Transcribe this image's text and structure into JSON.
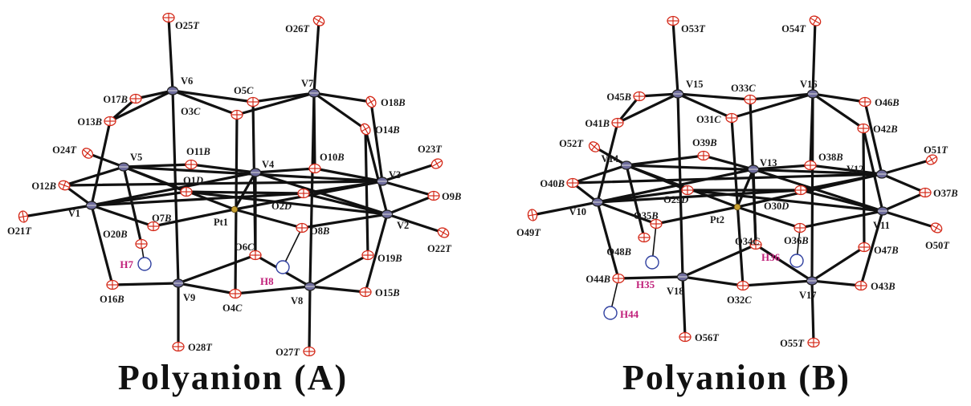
{
  "colors": {
    "oxygen": "#d42a1a",
    "vanadium": "#6e6c9c",
    "platinum": "#c8a030",
    "hydrogen": "#3040a0",
    "h_label": "#c0207a",
    "bond": "#111111"
  },
  "panels": [
    {
      "id": "A",
      "caption": "Polyanion (A)",
      "vanadium": [
        {
          "label": "V1",
          "nx": 0.0,
          "ny": 0.0
        },
        {
          "label": "V2",
          "nx": 0.0,
          "ny": 0.0
        },
        {
          "label": "V3",
          "nx": 0.0,
          "ny": 0.0
        },
        {
          "label": "V4",
          "nx": 0.0,
          "ny": 0.0
        },
        {
          "label": "V5",
          "nx": 0.0,
          "ny": 0.0
        },
        {
          "label": "V6",
          "nx": 0.0,
          "ny": 0.0
        },
        {
          "label": "V7",
          "nx": 0.0,
          "ny": 0.0
        },
        {
          "label": "V8",
          "nx": 0.0,
          "ny": 0.0
        },
        {
          "label": "V9",
          "nx": 0.0,
          "ny": 0.0
        }
      ],
      "platinum": "Pt1",
      "oxygen": [
        "O1D",
        "O2D",
        "O3C",
        "O4C",
        "O5C",
        "O6C",
        "O7B",
        "O8B",
        "O9B",
        "O10B",
        "O11B",
        "O12B",
        "O13B",
        "O14B",
        "O15B",
        "O16B",
        "O17B",
        "O18B",
        "O19B",
        "O20B",
        "O21T",
        "O22T",
        "O23T",
        "O24T",
        "O25T",
        "O26T",
        "O27T",
        "O28T"
      ],
      "hydrogen": [
        "H7",
        "H8"
      ]
    },
    {
      "id": "B",
      "caption": "Polyanion (B)",
      "vanadium": [
        "V10",
        "V11",
        "V12",
        "V13",
        "V14",
        "V15",
        "V16",
        "V17",
        "V18"
      ],
      "platinum": "Pt2",
      "oxygen": [
        "O29D",
        "O30D",
        "O31C",
        "O32C",
        "O33C",
        "O34C",
        "O35B",
        "O36B",
        "O37B",
        "O38B",
        "O39B",
        "O40B",
        "O41B",
        "O42B",
        "O43B",
        "O44B",
        "O45B",
        "O46B",
        "O47B",
        "O48B",
        "O49T",
        "O50T",
        "O51T",
        "O52T",
        "O53T",
        "O54T",
        "O55T",
        "O56T"
      ],
      "hydrogen": [
        "H35",
        "H36",
        "H44"
      ]
    }
  ]
}
